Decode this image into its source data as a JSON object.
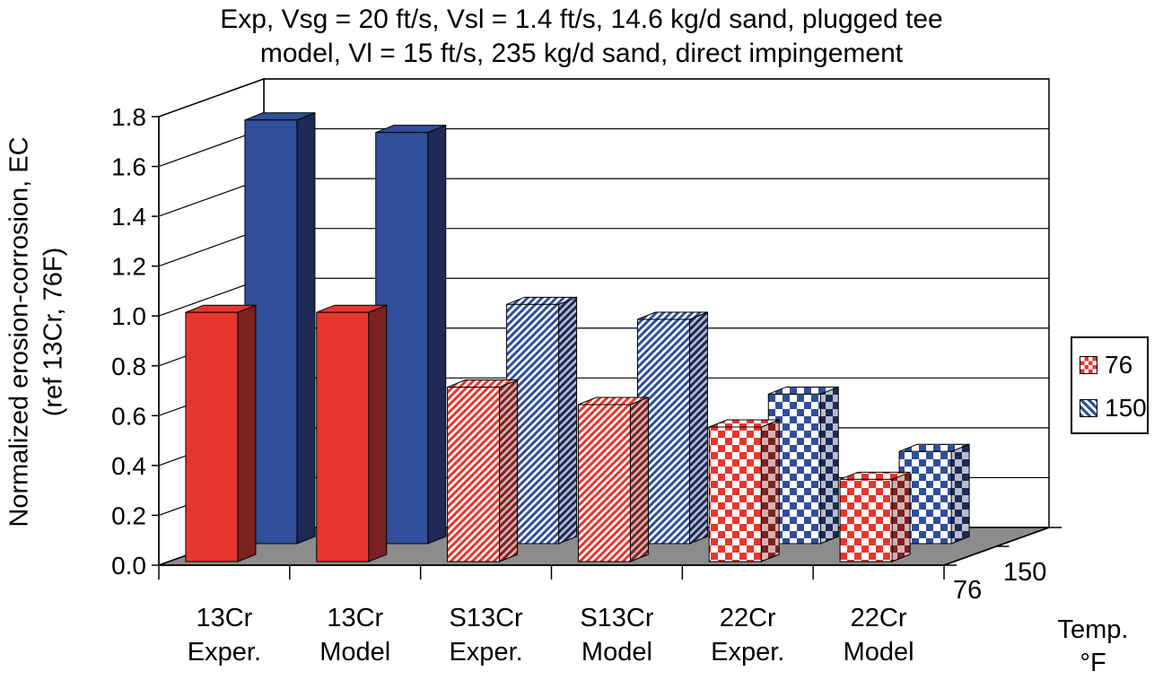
{
  "chart_data": {
    "type": "bar",
    "title": [
      "Exp, Vsg = 20 ft/s, Vsl = 1.4 ft/s, 14.6 kg/d sand, plugged tee",
      "model, Vl = 15 ft/s, 235 kg/d sand, direct impingement"
    ],
    "ylabel": [
      "Normalized erosion-corrosion, EC",
      "(ref 13Cr, 76F)"
    ],
    "xlabel": [
      "Temp.",
      "°F"
    ],
    "categories": [
      [
        "13Cr",
        "Exper."
      ],
      [
        "13Cr",
        "Model"
      ],
      [
        "S13Cr",
        "Exper."
      ],
      [
        "S13Cr",
        "Model"
      ],
      [
        "22Cr",
        "Exper."
      ],
      [
        "22Cr",
        "Model"
      ]
    ],
    "y_ticks": [
      "0.0",
      "0.2",
      "0.4",
      "0.6",
      "0.8",
      "1.0",
      "1.2",
      "1.4",
      "1.6",
      "1.8"
    ],
    "ylim": [
      0,
      1.8
    ],
    "depth_labels": [
      "76",
      "150"
    ],
    "series": [
      {
        "name": "76",
        "values": [
          1.0,
          1.0,
          0.7,
          0.63,
          0.54,
          0.33
        ]
      },
      {
        "name": "150",
        "values": [
          1.7,
          1.65,
          0.96,
          0.9,
          0.6,
          0.37
        ]
      }
    ],
    "legend": {
      "position": "right",
      "entries": [
        "76",
        "150"
      ]
    },
    "grid": true
  },
  "colors": {
    "red": "#e8362e",
    "red_dark": "#7a2222",
    "blue": "#2f4f9a",
    "blue_dark": "#1d2a55",
    "floor": "#8c8c8c"
  }
}
